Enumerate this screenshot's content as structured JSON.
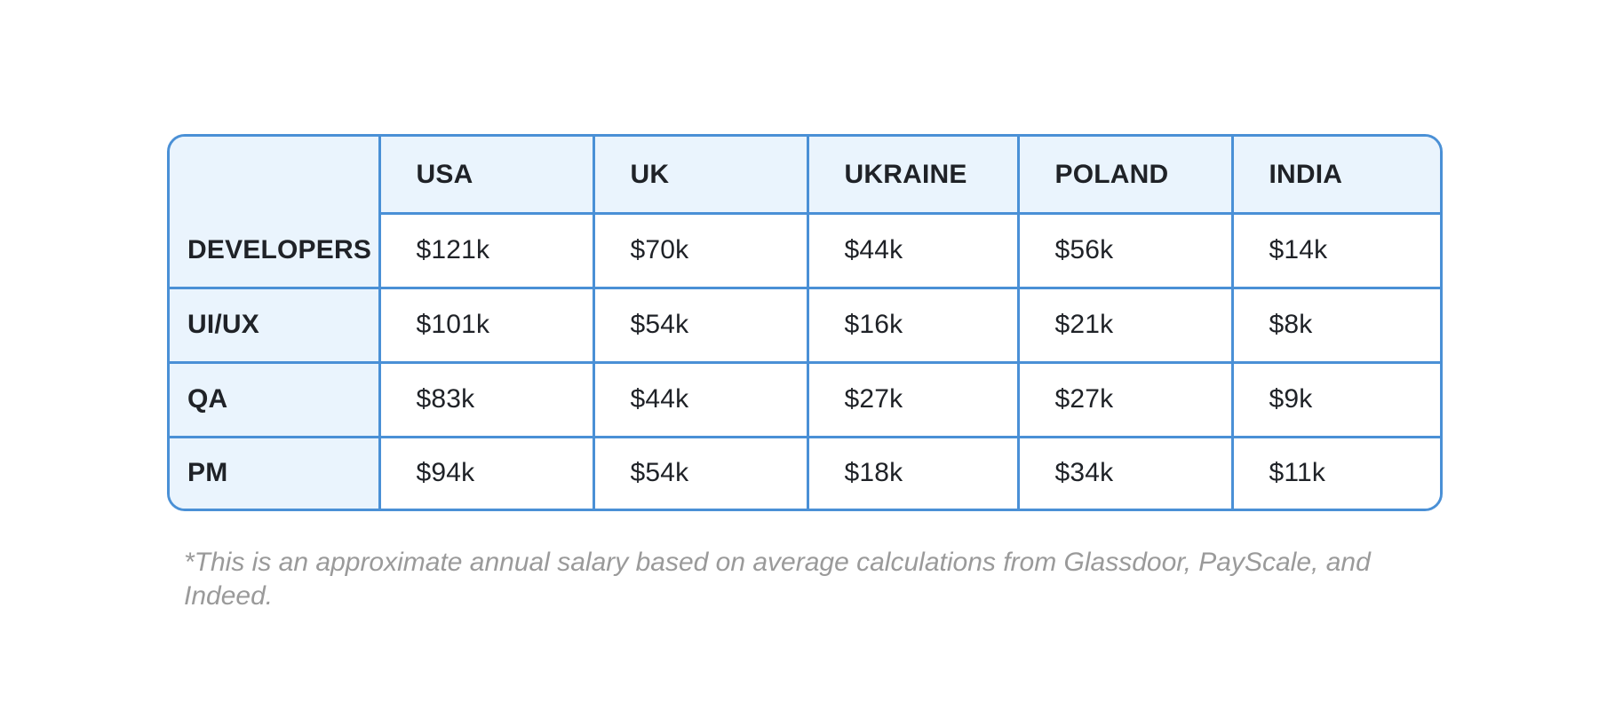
{
  "chart_data": {
    "type": "table",
    "columns": [
      "",
      "USA",
      "UK",
      "UKRAINE",
      "POLAND",
      "INDIA"
    ],
    "rows": [
      {
        "label": "DEVELOPERS",
        "values": [
          "$121k",
          "$70k",
          "$44k",
          "$56k",
          "$14k"
        ]
      },
      {
        "label": "UI/UX",
        "values": [
          "$101k",
          "$54k",
          "$16k",
          "$21k",
          "$8k"
        ]
      },
      {
        "label": "QA",
        "values": [
          "$83k",
          "$44k",
          "$27k",
          "$27k",
          "$9k"
        ]
      },
      {
        "label": "PM",
        "values": [
          "$94k",
          "$54k",
          "$18k",
          "$34k",
          "$11k"
        ]
      }
    ]
  },
  "footnote": "*This is an approximate annual salary based on average calculations from Glassdoor, PayScale, and Indeed.",
  "colors": {
    "border": "#4a90d6",
    "header_background": "#eaf4fd",
    "text": "#1f2227",
    "footnote": "#9a9a9a"
  }
}
